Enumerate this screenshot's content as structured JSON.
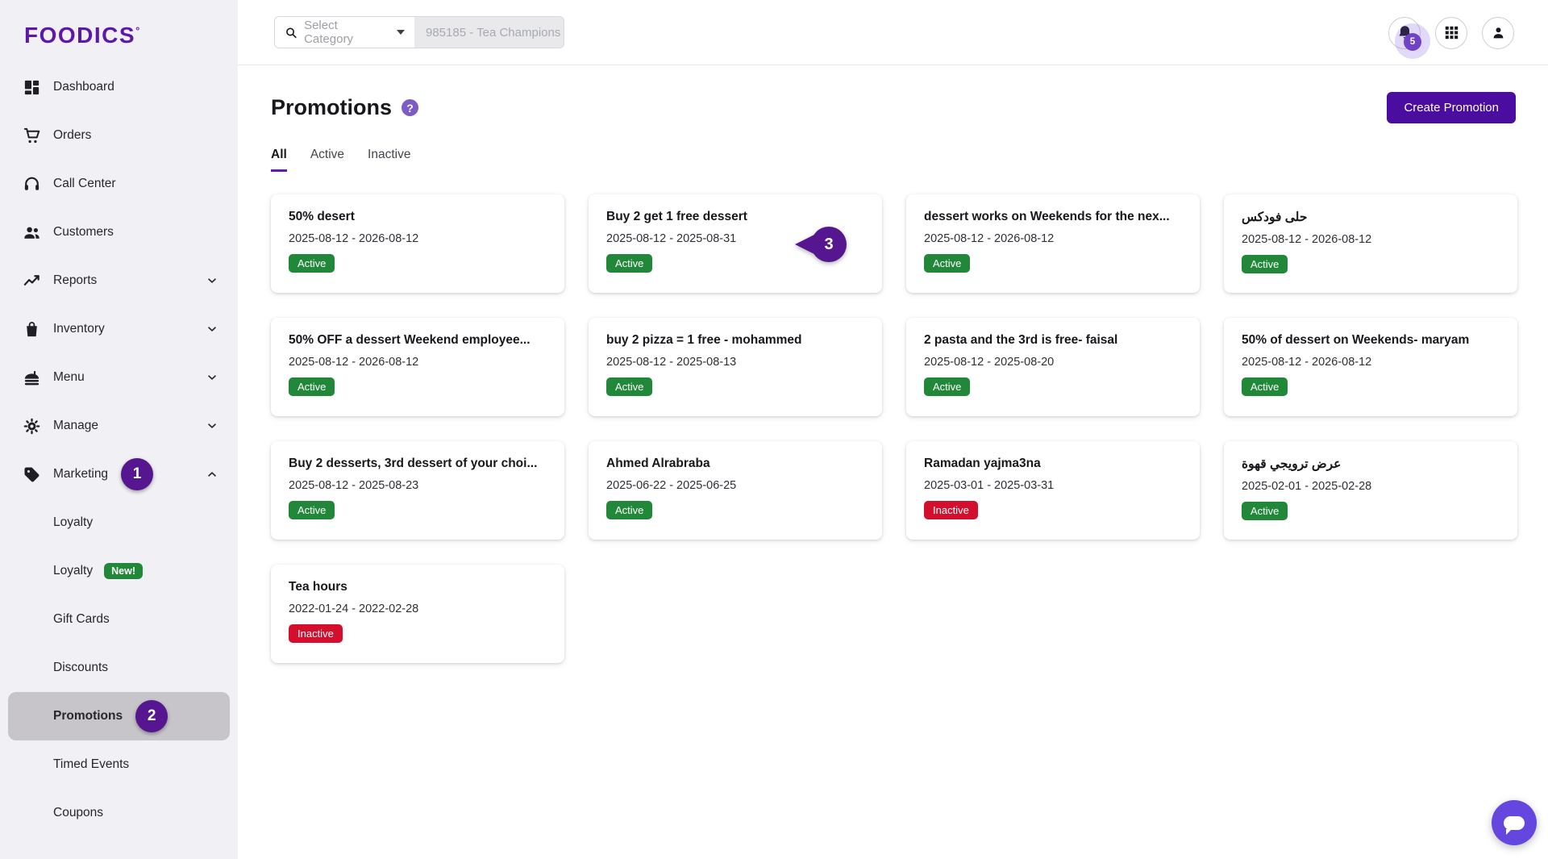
{
  "brand": {
    "logo_text": "FOODICS",
    "logo_mark": "°"
  },
  "topbar": {
    "category_select": {
      "label": "Select Category",
      "icon": "search-icon"
    },
    "branch_search": {
      "placeholder": "985185 - Tea Champions"
    },
    "notifications": {
      "count": "5",
      "icon": "bell-icon"
    },
    "apps_icon": "grid-icon",
    "account_icon": "user-icon"
  },
  "sidebar": {
    "items": [
      {
        "label": "Dashboard",
        "icon": "dashboard"
      },
      {
        "label": "Orders",
        "icon": "cart"
      },
      {
        "label": "Call Center",
        "icon": "headset"
      },
      {
        "label": "Customers",
        "icon": "people"
      },
      {
        "label": "Reports",
        "icon": "chart",
        "chevron": "down"
      },
      {
        "label": "Inventory",
        "icon": "bag",
        "chevron": "down"
      },
      {
        "label": "Menu",
        "icon": "menu",
        "chevron": "down"
      },
      {
        "label": "Manage",
        "icon": "gear",
        "chevron": "down"
      },
      {
        "label": "Marketing",
        "icon": "tag",
        "chevron": "up",
        "annotation": "1"
      },
      {
        "label": "Loyalty",
        "sub": true
      },
      {
        "label": "Loyalty",
        "sub": true,
        "badge": "New!"
      },
      {
        "label": "Gift Cards",
        "sub": true
      },
      {
        "label": "Discounts",
        "sub": true
      },
      {
        "label": "Promotions",
        "sub": true,
        "active": true,
        "annotation": "2"
      },
      {
        "label": "Timed Events",
        "sub": true
      },
      {
        "label": "Coupons",
        "sub": true
      }
    ]
  },
  "page": {
    "title": "Promotions",
    "help_icon": "?",
    "create_button": "Create Promotion",
    "tabs": [
      {
        "label": "All",
        "active": true
      },
      {
        "label": "Active",
        "active": false
      },
      {
        "label": "Inactive",
        "active": false
      }
    ]
  },
  "promotions": [
    {
      "name": "50% desert",
      "dates": "2025-08-12 - 2026-08-12",
      "status": "Active"
    },
    {
      "name": "Buy 2 get 1 free dessert",
      "dates": "2025-08-12 - 2025-08-31",
      "status": "Active",
      "annotation": "3"
    },
    {
      "name": "dessert works on Weekends for the nex...",
      "dates": "2025-08-12 - 2026-08-12",
      "status": "Active"
    },
    {
      "name": "حلى فودكس",
      "dates": "2025-08-12 - 2026-08-12",
      "status": "Active"
    },
    {
      "name": "50% OFF a dessert Weekend employee...",
      "dates": "2025-08-12 - 2026-08-12",
      "status": "Active"
    },
    {
      "name": "buy 2 pizza = 1 free - mohammed",
      "dates": "2025-08-12 - 2025-08-13",
      "status": "Active"
    },
    {
      "name": "2 pasta and the 3rd is free- faisal",
      "dates": "2025-08-12 - 2025-08-20",
      "status": "Active"
    },
    {
      "name": "50% of dessert on Weekends- maryam",
      "dates": "2025-08-12 - 2026-08-12",
      "status": "Active"
    },
    {
      "name": "Buy 2 desserts, 3rd dessert of your choi...",
      "dates": "2025-08-12 - 2025-08-23",
      "status": "Active"
    },
    {
      "name": "Ahmed Alrabraba",
      "dates": "2025-06-22 - 2025-06-25",
      "status": "Active"
    },
    {
      "name": "Ramadan yajma3na",
      "dates": "2025-03-01 - 2025-03-31",
      "status": "Inactive"
    },
    {
      "name": "عرض ترويجي قهوة",
      "dates": "2025-02-01 - 2025-02-28",
      "status": "Active"
    },
    {
      "name": "Tea hours",
      "dates": "2022-01-24 - 2022-02-28",
      "status": "Inactive"
    }
  ],
  "annotations": {
    "step_1": "1",
    "step_2": "2",
    "step_3": "3"
  },
  "colors": {
    "brand_purple": "#5d17a9",
    "button_purple": "#4b0da0",
    "annotation_purple": "#561690",
    "tab_underline_purple": "#5b21a8",
    "active_green": "#218739",
    "inactive_red": "#d40f2e",
    "chat_purple": "#6546de",
    "sidebar_bg": "#f1f0f5",
    "sidebar_active_bg": "#c7c5c9"
  }
}
